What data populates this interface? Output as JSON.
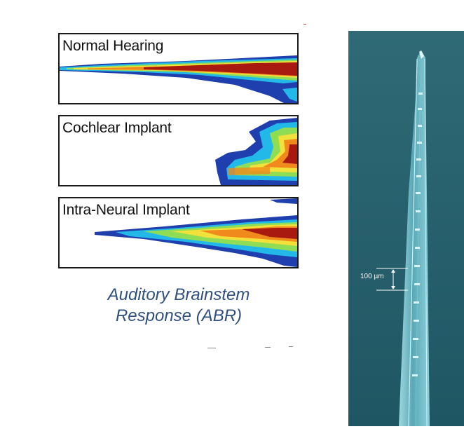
{
  "panels": [
    {
      "id": "normal",
      "label": "Normal Hearing"
    },
    {
      "id": "cochlear",
      "label": "Cochlear Implant"
    },
    {
      "id": "neural",
      "label": "Intra-Neural Implant"
    }
  ],
  "caption": {
    "line1": "Auditory Brainstem",
    "line2": "Response (ABR)"
  },
  "micrograph": {
    "scale_label": "100 µm"
  },
  "colors": {
    "caption": "#2f4f7f",
    "heat_blue": "#1f3fae",
    "heat_cyan": "#22b8e8",
    "heat_green": "#8fdc55",
    "heat_yellow": "#f2e13a",
    "heat_orange": "#f08a1c",
    "heat_red": "#a81a10",
    "photo_bg": "#2a5f6c"
  }
}
